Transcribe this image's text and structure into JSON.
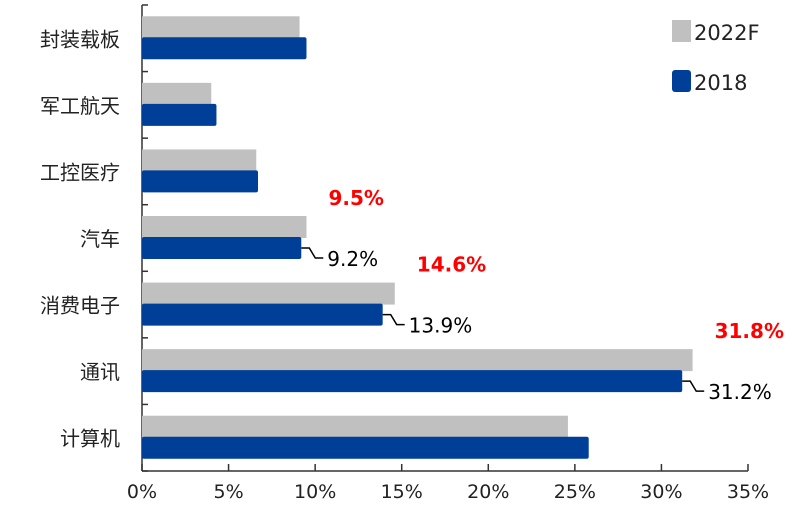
{
  "chart_data": {
    "type": "bar",
    "orientation": "horizontal",
    "categories": [
      "封装载板",
      "军工航天",
      "工控医疗",
      "汽车",
      "消费电子",
      "通讯",
      "计算机"
    ],
    "series": [
      {
        "name": "2022F",
        "color": "#c0c0c0",
        "values": [
          9.1,
          4.0,
          6.6,
          9.5,
          14.6,
          31.8,
          24.6
        ]
      },
      {
        "name": "2018",
        "color": "#003f98",
        "values": [
          9.5,
          4.3,
          6.7,
          9.2,
          13.9,
          31.2,
          25.8
        ]
      }
    ],
    "xlim": [
      0,
      35
    ],
    "xticks": [
      "0%",
      "5%",
      "10%",
      "15%",
      "20%",
      "25%",
      "30%",
      "35%"
    ],
    "xtick_values": [
      0,
      5,
      10,
      15,
      20,
      25,
      30,
      35
    ],
    "legend_position": "top-right",
    "grid": false,
    "annotations": [
      {
        "category": "汽车",
        "series": "2022F",
        "text": "9.5%",
        "color": "#ff0000"
      },
      {
        "category": "汽车",
        "series": "2018",
        "text": "9.2%",
        "color": "#000000"
      },
      {
        "category": "消费电子",
        "series": "2022F",
        "text": "14.6%",
        "color": "#ff0000"
      },
      {
        "category": "消费电子",
        "series": "2018",
        "text": "13.9%",
        "color": "#000000"
      },
      {
        "category": "通讯",
        "series": "2022F",
        "text": "31.8%",
        "color": "#ff0000"
      },
      {
        "category": "通讯",
        "series": "2018",
        "text": "31.2%",
        "color": "#000000"
      }
    ]
  }
}
